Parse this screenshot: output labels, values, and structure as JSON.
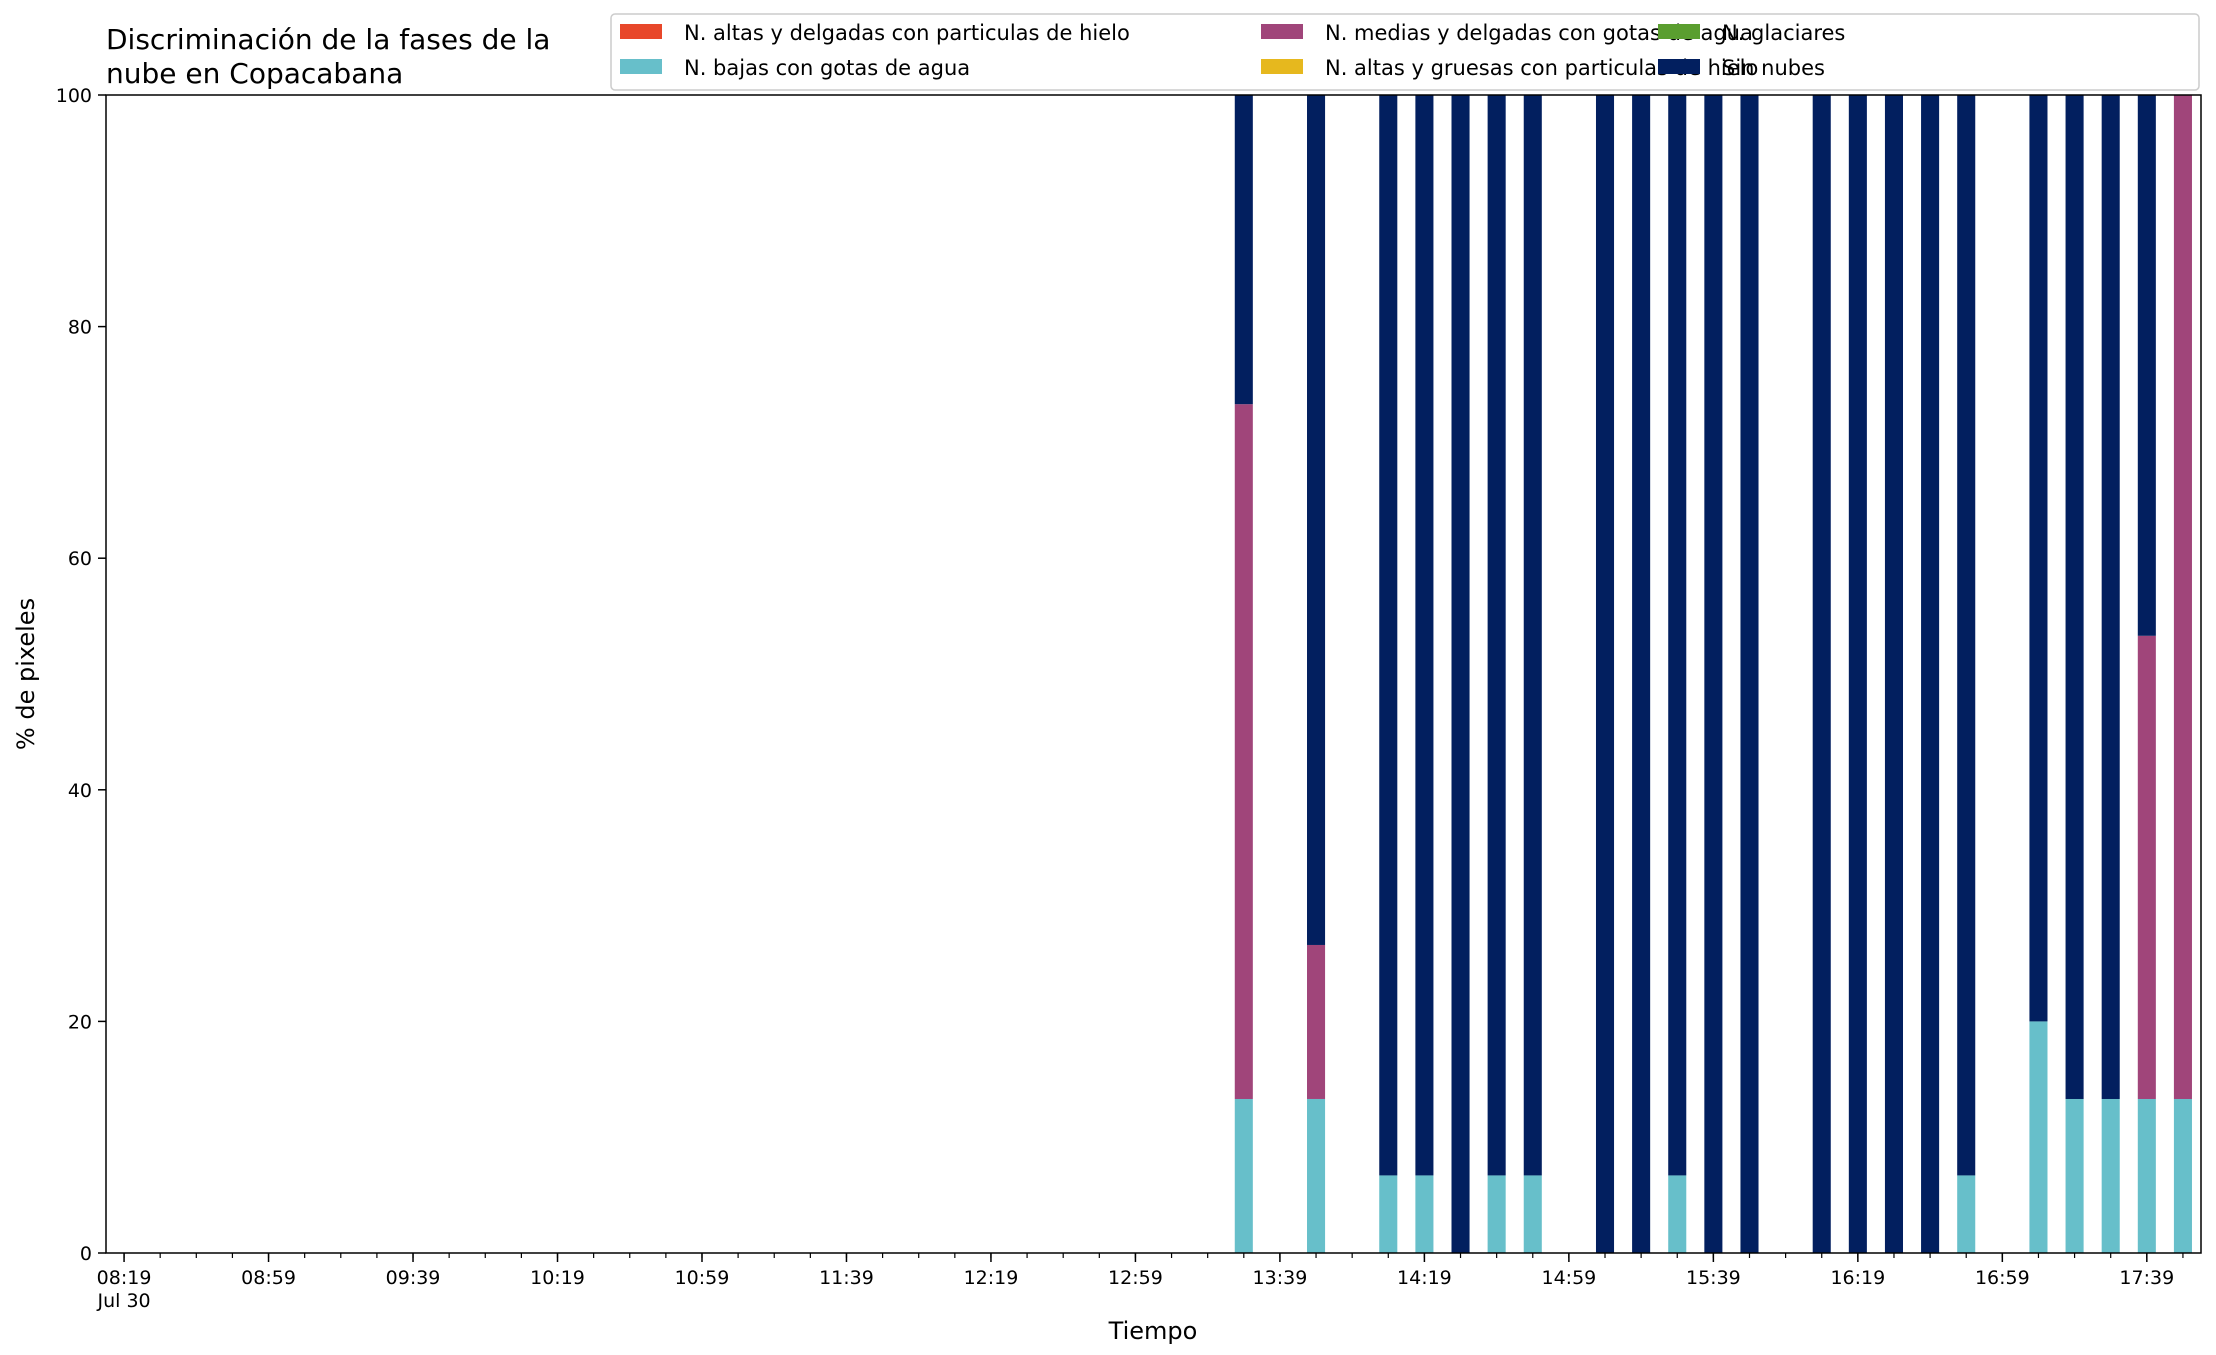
{
  "chart_data": {
    "type": "bar",
    "stacked": true,
    "title": [
      "Discriminación de la fases de la",
      "nube en Copacabana"
    ],
    "xlabel": "Tiempo",
    "ylabel": "% de pixeles",
    "ylim": [
      0,
      100
    ],
    "yticks": [
      0,
      20,
      40,
      60,
      80,
      100
    ],
    "xlim_minutes": [
      494,
      1074
    ],
    "xticks": [
      {
        "minute": 499,
        "label": "08:19",
        "sublabel": "Jul 30"
      },
      {
        "minute": 539,
        "label": "08:59"
      },
      {
        "minute": 579,
        "label": "09:39"
      },
      {
        "minute": 619,
        "label": "10:19"
      },
      {
        "minute": 659,
        "label": "10:59"
      },
      {
        "minute": 699,
        "label": "11:39"
      },
      {
        "minute": 739,
        "label": "12:19"
      },
      {
        "minute": 779,
        "label": "12:59"
      },
      {
        "minute": 819,
        "label": "13:39"
      },
      {
        "minute": 859,
        "label": "14:19"
      },
      {
        "minute": 899,
        "label": "14:59"
      },
      {
        "minute": 939,
        "label": "15:39"
      },
      {
        "minute": 979,
        "label": "16:19"
      },
      {
        "minute": 1019,
        "label": "16:59"
      },
      {
        "minute": 1059,
        "label": "17:39"
      }
    ],
    "minor_tick_step_minutes": 10,
    "legend_position": "top-right",
    "legend_columns": 3,
    "series": [
      {
        "name": "N. altas y delgadas con particulas de hielo",
        "color": "#e8472a"
      },
      {
        "name": "N. altas y gruesas con particulas de hielo",
        "color": "#e6b81e"
      },
      {
        "name": "N. bajas con gotas de agua",
        "color": "#67bfca"
      },
      {
        "name": "N. glaciares",
        "color": "#5a9e2f"
      },
      {
        "name": "N. medias y delgadas con gotas de agua",
        "color": "#a0457a"
      },
      {
        "name": "Sin nubes",
        "color": "#021f5f"
      }
    ],
    "legend_order": [
      0,
      2,
      4,
      1,
      3,
      5
    ],
    "bar_width_minutes": 5,
    "stack_order": [
      0,
      1,
      2,
      3,
      4,
      5
    ],
    "bars": [
      {
        "time": "13:29",
        "minute": 809,
        "values": [
          0,
          0,
          13.3,
          0,
          60.0,
          26.7
        ]
      },
      {
        "time": "13:49",
        "minute": 829,
        "values": [
          0,
          0,
          13.3,
          0,
          13.3,
          73.4
        ]
      },
      {
        "time": "14:09",
        "minute": 849,
        "values": [
          0,
          0,
          6.7,
          0,
          0,
          93.3
        ]
      },
      {
        "time": "14:19",
        "minute": 859,
        "values": [
          0,
          0,
          6.7,
          0,
          0,
          93.3
        ]
      },
      {
        "time": "14:29",
        "minute": 869,
        "values": [
          0,
          0,
          0,
          0,
          0,
          100
        ]
      },
      {
        "time": "14:39",
        "minute": 879,
        "values": [
          0,
          0,
          6.7,
          0,
          0,
          93.3
        ]
      },
      {
        "time": "14:49",
        "minute": 889,
        "values": [
          0,
          0,
          6.7,
          0,
          0,
          93.3
        ]
      },
      {
        "time": "15:09",
        "minute": 909,
        "values": [
          0,
          0,
          0,
          0,
          0,
          100
        ]
      },
      {
        "time": "15:19",
        "minute": 919,
        "values": [
          0,
          0,
          0,
          0,
          0,
          100
        ]
      },
      {
        "time": "15:29",
        "minute": 929,
        "values": [
          0,
          0,
          6.7,
          0,
          0,
          93.3
        ]
      },
      {
        "time": "15:39",
        "minute": 939,
        "values": [
          0,
          0,
          0,
          0,
          0,
          100
        ]
      },
      {
        "time": "15:49",
        "minute": 949,
        "values": [
          0,
          0,
          0,
          0,
          0,
          100
        ]
      },
      {
        "time": "16:09",
        "minute": 969,
        "values": [
          0,
          0,
          0,
          0,
          0,
          100
        ]
      },
      {
        "time": "16:19",
        "minute": 979,
        "values": [
          0,
          0,
          0,
          0,
          0,
          100
        ]
      },
      {
        "time": "16:29",
        "minute": 989,
        "values": [
          0,
          0,
          0,
          0,
          0,
          100
        ]
      },
      {
        "time": "16:39",
        "minute": 999,
        "values": [
          0,
          0,
          0,
          0,
          0,
          100
        ]
      },
      {
        "time": "16:49",
        "minute": 1009,
        "values": [
          0,
          0,
          6.7,
          0,
          0,
          93.3
        ]
      },
      {
        "time": "17:09",
        "minute": 1029,
        "values": [
          0,
          0,
          20.0,
          0,
          0,
          80.0
        ]
      },
      {
        "time": "17:19",
        "minute": 1039,
        "values": [
          0,
          0,
          13.3,
          0,
          0,
          86.7
        ]
      },
      {
        "time": "17:29",
        "minute": 1049,
        "values": [
          0,
          0,
          13.3,
          0,
          0,
          86.7
        ]
      },
      {
        "time": "17:39",
        "minute": 1059,
        "values": [
          0,
          0,
          13.3,
          0,
          40.0,
          46.7
        ]
      },
      {
        "time": "17:49",
        "minute": 1069,
        "values": [
          0,
          0,
          13.3,
          0,
          86.7,
          0
        ]
      }
    ]
  }
}
